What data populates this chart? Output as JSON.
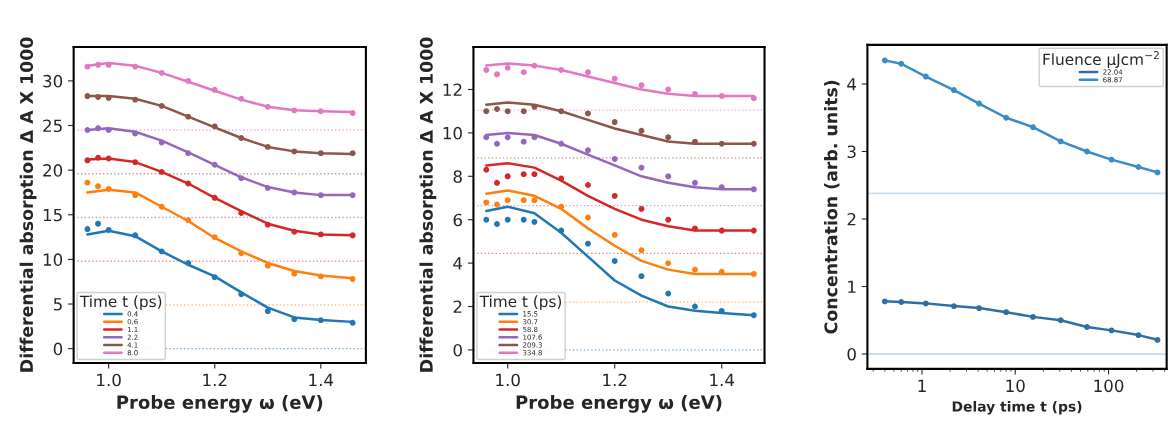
{
  "chart_data": [
    {
      "type": "line",
      "xlabel": "Probe energy ω (eV)",
      "ylabel": "Differential absorption Δ A X 1000",
      "legend_title": "Time t (ps)",
      "legend": "bottom left",
      "xlim": [
        0.934,
        1.485
      ],
      "ylim": [
        -1.6,
        33.8
      ],
      "xticks": [
        {
          "value": 1,
          "label": "1.0"
        },
        {
          "value": 1.2,
          "label": "1.2"
        },
        {
          "value": 1.4,
          "label": "1.4"
        }
      ],
      "yticks": [
        0,
        5,
        10,
        15,
        20,
        25,
        30
      ],
      "ref_lines": [
        {
          "axis": "y",
          "value": 0,
          "color": "#1f77b4",
          "line_style": "dotted"
        },
        {
          "axis": "y",
          "value": 4.9,
          "color": "#ff7f0e",
          "line_style": "dotted"
        },
        {
          "axis": "y",
          "value": 9.8,
          "color": "#d62728",
          "line_style": "dotted"
        },
        {
          "axis": "y",
          "value": 14.7,
          "color": "#9467bd",
          "line_style": "dotted"
        },
        {
          "axis": "y",
          "value": 19.6,
          "color": "#8c564b",
          "line_style": "dotted"
        },
        {
          "axis": "y",
          "value": 24.5,
          "color": "#e377c2",
          "line_style": "dotted"
        }
      ],
      "series": [
        {
          "type": "scatter",
          "color": "#1f77b4",
          "x": [
            0.96,
            0.98,
            1.0,
            1.05,
            1.1,
            1.15,
            1.2,
            1.25,
            1.3,
            1.35,
            1.4,
            1.46
          ],
          "values": [
            13.4,
            14.0,
            13.3,
            12.7,
            10.9,
            9.6,
            8.0,
            6.1,
            4.2,
            3.3,
            3.2,
            2.9
          ]
        },
        {
          "type": "scatter",
          "color": "#ff7f0e",
          "x": [
            0.96,
            0.98,
            1.0,
            1.05,
            1.1,
            1.15,
            1.2,
            1.25,
            1.3,
            1.35,
            1.4,
            1.46
          ],
          "values": [
            18.6,
            18.2,
            17.9,
            17.2,
            15.9,
            14.4,
            12.5,
            10.7,
            9.3,
            8.4,
            8.1,
            7.8
          ]
        },
        {
          "type": "scatter",
          "color": "#d62728",
          "x": [
            0.96,
            0.98,
            1.0,
            1.05,
            1.1,
            1.15,
            1.2,
            1.25,
            1.3,
            1.35,
            1.4,
            1.46
          ],
          "values": [
            21.1,
            21.4,
            21.3,
            20.9,
            19.8,
            18.5,
            16.9,
            15.2,
            13.9,
            13.1,
            12.8,
            12.7
          ]
        },
        {
          "type": "scatter",
          "color": "#9467bd",
          "x": [
            0.96,
            0.98,
            1.0,
            1.05,
            1.1,
            1.15,
            1.2,
            1.25,
            1.3,
            1.35,
            1.4,
            1.46
          ],
          "values": [
            24.5,
            24.7,
            24.5,
            24.1,
            23.1,
            21.9,
            20.6,
            19.1,
            18.0,
            17.5,
            17.2,
            17.2
          ]
        },
        {
          "type": "scatter",
          "color": "#8c564b",
          "x": [
            0.96,
            0.98,
            1.0,
            1.05,
            1.1,
            1.15,
            1.2,
            1.25,
            1.3,
            1.35,
            1.4,
            1.46
          ],
          "values": [
            28.3,
            28.2,
            28.1,
            27.9,
            27.2,
            26.0,
            24.9,
            23.6,
            22.6,
            22.1,
            21.9,
            21.9
          ]
        },
        {
          "type": "scatter",
          "color": "#e377c2",
          "x": [
            0.96,
            0.98,
            1.0,
            1.05,
            1.1,
            1.15,
            1.2,
            1.25,
            1.3,
            1.35,
            1.4,
            1.46
          ],
          "values": [
            31.6,
            31.8,
            31.8,
            31.6,
            30.9,
            30.0,
            29.0,
            28.0,
            27.1,
            26.7,
            26.6,
            26.4
          ]
        },
        {
          "type": "line",
          "name": "0.4",
          "color": "#1f77b4",
          "x": [
            0.96,
            1.0,
            1.05,
            1.1,
            1.15,
            1.2,
            1.25,
            1.3,
            1.35,
            1.4,
            1.46
          ],
          "values": [
            12.8,
            13.2,
            12.6,
            10.9,
            9.4,
            8.1,
            6.3,
            4.6,
            3.5,
            3.2,
            3.0
          ]
        },
        {
          "type": "line",
          "name": "0.6",
          "color": "#ff7f0e",
          "x": [
            0.96,
            1.0,
            1.05,
            1.1,
            1.15,
            1.2,
            1.25,
            1.3,
            1.35,
            1.4,
            1.46
          ],
          "values": [
            17.5,
            17.8,
            17.5,
            15.9,
            14.3,
            12.4,
            10.9,
            9.6,
            8.7,
            8.2,
            7.9
          ]
        },
        {
          "type": "line",
          "name": "1.1",
          "color": "#d62728",
          "x": [
            0.96,
            1.0,
            1.05,
            1.1,
            1.15,
            1.2,
            1.25,
            1.3,
            1.35,
            1.4,
            1.46
          ],
          "values": [
            21.2,
            21.3,
            20.9,
            19.8,
            18.5,
            16.9,
            15.4,
            14.0,
            13.2,
            12.8,
            12.7
          ]
        },
        {
          "type": "line",
          "name": "2.2",
          "color": "#9467bd",
          "x": [
            0.96,
            1.0,
            1.05,
            1.1,
            1.15,
            1.2,
            1.25,
            1.3,
            1.35,
            1.4,
            1.46
          ],
          "values": [
            24.5,
            24.7,
            24.3,
            23.3,
            22.0,
            20.6,
            19.2,
            18.1,
            17.5,
            17.2,
            17.2
          ]
        },
        {
          "type": "line",
          "name": "4.1",
          "color": "#8c564b",
          "x": [
            0.96,
            1.0,
            1.05,
            1.1,
            1.15,
            1.2,
            1.25,
            1.3,
            1.35,
            1.4,
            1.46
          ],
          "values": [
            28.3,
            28.3,
            28.0,
            27.2,
            26.0,
            24.8,
            23.6,
            22.6,
            22.1,
            21.9,
            21.8
          ]
        },
        {
          "type": "line",
          "name": "8.0",
          "color": "#e377c2",
          "x": [
            0.96,
            1.0,
            1.05,
            1.1,
            1.15,
            1.2,
            1.25,
            1.3,
            1.35,
            1.4,
            1.46
          ],
          "values": [
            31.7,
            32.0,
            31.7,
            30.9,
            29.9,
            28.9,
            27.9,
            27.1,
            26.7,
            26.6,
            26.5
          ]
        }
      ]
    },
    {
      "type": "line",
      "xlabel": "Probe energy ω (eV)",
      "ylabel": "Differential absorption Δ A X 1000",
      "legend_title": "Time t (ps)",
      "legend": "bottom left",
      "xlim": [
        0.936,
        1.48
      ],
      "ylim": [
        -0.6,
        13.96
      ],
      "xticks": [
        {
          "value": 1,
          "label": "1.0"
        },
        {
          "value": 1.2,
          "label": "1.2"
        },
        {
          "value": 1.4,
          "label": "1.4"
        }
      ],
      "yticks": [
        0,
        2,
        4,
        6,
        8,
        10,
        12
      ],
      "ref_lines": [
        {
          "axis": "y",
          "value": 0,
          "color": "#1f77b4",
          "line_style": "dotted"
        },
        {
          "axis": "y",
          "value": 2.2,
          "color": "#ff7f0e",
          "line_style": "dotted"
        },
        {
          "axis": "y",
          "value": 4.45,
          "color": "#d62728",
          "line_style": "dotted"
        },
        {
          "axis": "y",
          "value": 6.65,
          "color": "#9467bd",
          "line_style": "dotted"
        },
        {
          "axis": "y",
          "value": 8.85,
          "color": "#8c564b",
          "line_style": "dotted"
        },
        {
          "axis": "y",
          "value": 11.05,
          "color": "#e377c2",
          "line_style": "dotted"
        }
      ],
      "series": [
        {
          "type": "scatter",
          "color": "#1f77b4",
          "x": [
            0.96,
            0.98,
            1.0,
            1.03,
            1.05,
            1.1,
            1.15,
            1.2,
            1.25,
            1.3,
            1.35,
            1.4,
            1.46
          ],
          "values": [
            6.0,
            5.8,
            6.0,
            6.0,
            5.9,
            5.5,
            4.9,
            4.1,
            3.4,
            2.6,
            2.0,
            1.8,
            1.6
          ]
        },
        {
          "type": "scatter",
          "color": "#ff7f0e",
          "x": [
            0.96,
            0.98,
            1.0,
            1.03,
            1.05,
            1.1,
            1.15,
            1.2,
            1.25,
            1.3,
            1.35,
            1.4,
            1.46
          ],
          "values": [
            6.8,
            6.7,
            6.9,
            6.9,
            6.9,
            6.6,
            6.1,
            5.3,
            4.6,
            4.0,
            3.7,
            3.6,
            3.5
          ]
        },
        {
          "type": "scatter",
          "color": "#d62728",
          "x": [
            0.96,
            0.98,
            1.0,
            1.03,
            1.05,
            1.1,
            1.15,
            1.2,
            1.25,
            1.3,
            1.35,
            1.4,
            1.46
          ],
          "values": [
            8.3,
            7.7,
            8.0,
            8.1,
            8.1,
            7.9,
            7.6,
            7.1,
            6.5,
            6.0,
            5.6,
            5.5,
            5.5
          ]
        },
        {
          "type": "scatter",
          "color": "#9467bd",
          "x": [
            0.96,
            0.98,
            1.0,
            1.03,
            1.05,
            1.1,
            1.15,
            1.2,
            1.25,
            1.3,
            1.35,
            1.4,
            1.46
          ],
          "values": [
            9.8,
            9.5,
            9.8,
            9.6,
            9.8,
            9.5,
            9.2,
            8.8,
            8.4,
            8.0,
            7.7,
            7.5,
            7.4
          ]
        },
        {
          "type": "scatter",
          "color": "#8c564b",
          "x": [
            0.96,
            0.98,
            1.0,
            1.03,
            1.05,
            1.1,
            1.15,
            1.2,
            1.25,
            1.3,
            1.35,
            1.4,
            1.46
          ],
          "values": [
            11.0,
            11.1,
            11.0,
            11.0,
            11.2,
            11.0,
            10.9,
            10.5,
            10.1,
            9.8,
            9.6,
            9.5,
            9.5
          ]
        },
        {
          "type": "scatter",
          "color": "#e377c2",
          "x": [
            0.96,
            0.98,
            1.0,
            1.03,
            1.05,
            1.1,
            1.15,
            1.2,
            1.25,
            1.3,
            1.35,
            1.4,
            1.46
          ],
          "values": [
            12.9,
            12.7,
            13.0,
            12.8,
            13.1,
            12.9,
            12.8,
            12.5,
            12.2,
            12.0,
            11.8,
            11.7,
            11.6
          ]
        },
        {
          "type": "line",
          "name": "15.5",
          "color": "#1f77b4",
          "x": [
            0.96,
            1.0,
            1.05,
            1.1,
            1.15,
            1.2,
            1.25,
            1.3,
            1.35,
            1.4,
            1.46
          ],
          "values": [
            6.4,
            6.6,
            6.3,
            5.4,
            4.3,
            3.2,
            2.5,
            2.0,
            1.8,
            1.7,
            1.6
          ]
        },
        {
          "type": "line",
          "name": "30.7",
          "color": "#ff7f0e",
          "x": [
            0.96,
            1.0,
            1.05,
            1.1,
            1.15,
            1.2,
            1.25,
            1.3,
            1.35,
            1.4,
            1.46
          ],
          "values": [
            7.2,
            7.35,
            7.1,
            6.5,
            5.6,
            4.8,
            4.1,
            3.7,
            3.5,
            3.5,
            3.5
          ]
        },
        {
          "type": "line",
          "name": "58.8",
          "color": "#d62728",
          "x": [
            0.96,
            1.0,
            1.05,
            1.1,
            1.15,
            1.2,
            1.25,
            1.3,
            1.35,
            1.4,
            1.46
          ],
          "values": [
            8.5,
            8.6,
            8.4,
            7.8,
            7.1,
            6.5,
            6.0,
            5.7,
            5.5,
            5.5,
            5.5
          ]
        },
        {
          "type": "line",
          "name": "107.6",
          "color": "#9467bd",
          "x": [
            0.96,
            1.0,
            1.05,
            1.1,
            1.15,
            1.2,
            1.25,
            1.3,
            1.35,
            1.4,
            1.46
          ],
          "values": [
            9.9,
            10.0,
            9.9,
            9.5,
            9.0,
            8.5,
            8.0,
            7.7,
            7.5,
            7.4,
            7.4
          ]
        },
        {
          "type": "line",
          "name": "209.3",
          "color": "#8c564b",
          "x": [
            0.96,
            1.0,
            1.05,
            1.1,
            1.15,
            1.2,
            1.25,
            1.3,
            1.35,
            1.4,
            1.46
          ],
          "values": [
            11.3,
            11.4,
            11.3,
            11.0,
            10.6,
            10.2,
            9.9,
            9.6,
            9.5,
            9.5,
            9.5
          ]
        },
        {
          "type": "line",
          "name": "334.8",
          "color": "#e377c2",
          "x": [
            0.96,
            1.0,
            1.05,
            1.1,
            1.15,
            1.2,
            1.25,
            1.3,
            1.35,
            1.4,
            1.46
          ],
          "values": [
            13.1,
            13.2,
            13.1,
            12.9,
            12.6,
            12.3,
            12.0,
            11.8,
            11.7,
            11.7,
            11.7
          ]
        }
      ]
    },
    {
      "type": "line",
      "xlabel": "Delay time t (ps)",
      "ylabel": "Concentration (arb. units)",
      "legend_title": "Fluence μJcm$^{−2}$",
      "legend": "top right",
      "log": "x",
      "xlim": [
        0.26,
        420
      ],
      "ylim": [
        -0.22,
        4.58
      ],
      "xticks": [
        1,
        10,
        100
      ],
      "yticks": [
        0,
        1,
        2,
        3,
        4
      ],
      "ref_lines": [
        {
          "axis": "y",
          "value": 0,
          "color": "#a6c8e0",
          "line_style": "solid"
        },
        {
          "axis": "y",
          "value": 2.38,
          "color": "#a6c8e0",
          "line_style": "solid"
        }
      ],
      "series": [
        {
          "type": "scatter",
          "color": "#3a8cc4",
          "x": [
            0.4,
            0.6,
            1.1,
            2.2,
            4.1,
            8.0,
            15.5,
            30.7,
            58.8,
            107.6,
            209.3,
            334.8
          ],
          "values": [
            4.35,
            4.3,
            4.11,
            3.91,
            3.71,
            3.5,
            3.36,
            3.15,
            3.0,
            2.88,
            2.77,
            2.69
          ]
        },
        {
          "type": "scatter",
          "color": "#2e6fa6",
          "x": [
            0.4,
            0.6,
            1.1,
            2.2,
            4.1,
            8.0,
            15.5,
            30.7,
            58.8,
            107.6,
            209.3,
            334.8
          ],
          "values": [
            0.78,
            0.77,
            0.75,
            0.71,
            0.68,
            0.62,
            0.55,
            0.5,
            0.4,
            0.35,
            0.28,
            0.21
          ]
        },
        {
          "type": "line",
          "name": "22.04",
          "color": "#2e6fa6",
          "x": [
            0.4,
            0.6,
            1.1,
            2.2,
            4.1,
            8.0,
            15.5,
            30.7,
            58.8,
            107.6,
            209.3,
            334.8
          ],
          "values": [
            0.78,
            0.77,
            0.75,
            0.71,
            0.68,
            0.62,
            0.55,
            0.5,
            0.4,
            0.35,
            0.28,
            0.21
          ]
        },
        {
          "type": "line",
          "name": "68.87",
          "color": "#3a8cc4",
          "x": [
            0.4,
            0.6,
            1.1,
            2.2,
            4.1,
            8.0,
            15.5,
            30.7,
            58.8,
            107.6,
            209.3,
            334.8
          ],
          "values": [
            4.35,
            4.3,
            4.11,
            3.91,
            3.71,
            3.5,
            3.36,
            3.15,
            3.0,
            2.88,
            2.77,
            2.69
          ]
        }
      ]
    }
  ]
}
